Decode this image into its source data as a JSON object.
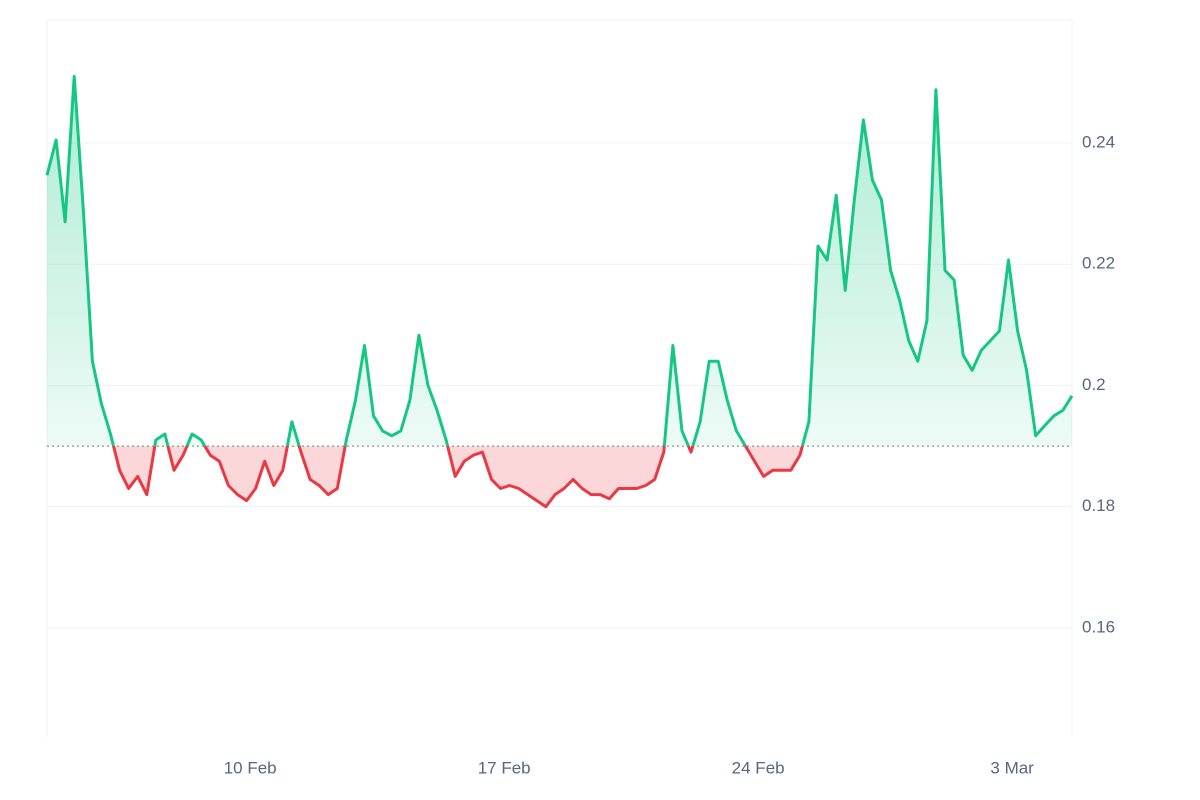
{
  "chart_data": {
    "type": "line",
    "x": [
      4.4,
      4.65,
      4.9,
      5.15,
      5.4,
      5.65,
      5.9,
      6.15,
      6.4,
      6.65,
      6.9,
      7.15,
      7.4,
      7.65,
      7.9,
      8.15,
      8.4,
      8.65,
      8.9,
      9.15,
      9.4,
      9.65,
      9.9,
      10.15,
      10.4,
      10.65,
      10.9,
      11.15,
      11.4,
      11.65,
      11.9,
      12.15,
      12.4,
      12.65,
      12.9,
      13.15,
      13.4,
      13.65,
      13.9,
      14.15,
      14.4,
      14.65,
      14.9,
      15.15,
      15.4,
      15.65,
      15.9,
      16.15,
      16.4,
      16.65,
      16.9,
      17.15,
      17.4,
      17.65,
      17.9,
      18.15,
      18.4,
      18.65,
      18.9,
      19.15,
      19.4,
      19.65,
      19.9,
      20.15,
      20.4,
      20.65,
      20.9,
      21.15,
      21.4,
      21.65,
      21.9,
      22.15,
      22.4,
      22.65,
      22.9,
      23.15,
      23.4,
      23.65,
      23.9,
      24.15,
      24.4,
      24.65,
      24.9,
      25.15,
      25.4,
      25.65,
      25.9,
      26.15,
      26.4,
      26.65,
      26.9,
      27.15,
      27.4,
      27.65,
      27.9,
      28.15,
      28.4,
      28.65,
      28.9,
      29.15,
      29.4,
      29.65,
      29.9,
      30.15,
      30.4,
      30.65,
      30.9,
      31.15,
      31.4,
      31.65,
      31.9,
      32.15,
      32.4,
      32.65
    ],
    "series": [
      {
        "values": [
          0.2347,
          0.2405,
          0.227,
          0.251,
          0.229,
          0.204,
          0.197,
          0.192,
          0.186,
          0.183,
          0.185,
          0.182,
          0.191,
          0.192,
          0.186,
          0.1885,
          0.192,
          0.191,
          0.1885,
          0.1875,
          0.1835,
          0.182,
          0.181,
          0.183,
          0.1875,
          0.1835,
          0.186,
          0.194,
          0.189,
          0.1845,
          0.1835,
          0.182,
          0.183,
          0.191,
          0.1975,
          0.2066,
          0.195,
          0.1925,
          0.1917,
          0.1925,
          0.1975,
          0.2083,
          0.2,
          0.1959,
          0.191,
          0.185,
          0.1875,
          0.1885,
          0.189,
          0.1845,
          0.183,
          0.1835,
          0.183,
          0.182,
          0.181,
          0.18,
          0.182,
          0.183,
          0.1845,
          0.183,
          0.182,
          0.182,
          0.1813,
          0.183,
          0.183,
          0.183,
          0.1835,
          0.1845,
          0.189,
          0.2066,
          0.1925,
          0.189,
          0.194,
          0.204,
          0.204,
          0.1975,
          0.1925,
          0.19,
          0.1875,
          0.185,
          0.186,
          0.186,
          0.186,
          0.1885,
          0.194,
          0.223,
          0.2207,
          0.2314,
          0.2157,
          0.2306,
          0.2438,
          0.2339,
          0.2306,
          0.219,
          0.214,
          0.2074,
          0.204,
          0.2107,
          0.2488,
          0.219,
          0.2174,
          0.205,
          0.2025,
          0.2058,
          0.2074,
          0.209,
          0.2207,
          0.209,
          0.2025,
          0.1917,
          0.1934,
          0.195,
          0.1959,
          0.1983
        ],
        "color_up": "#16c784",
        "color_down": "#ea3943"
      }
    ],
    "baseline": 0.19,
    "xlim": [
      4.4,
      32.65
    ],
    "xticks": [
      {
        "value": 10,
        "label": "10 Feb"
      },
      {
        "value": 17,
        "label": "17 Feb"
      },
      {
        "value": 24,
        "label": "24 Feb"
      },
      {
        "value": 31,
        "label": "3 Mar"
      }
    ],
    "ylim": [
      0.142,
      0.2603
    ],
    "yticks": [
      0.16,
      0.18,
      0.2,
      0.22,
      0.24
    ],
    "grid": true
  }
}
